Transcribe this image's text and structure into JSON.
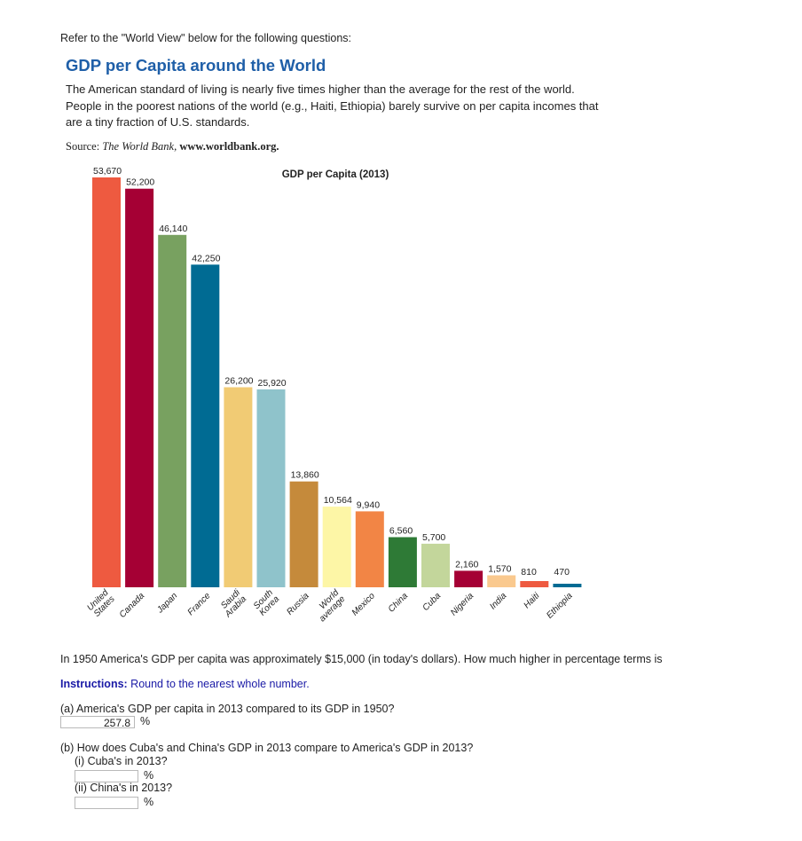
{
  "intro": "Refer to the \"World View\" below for the following questions:",
  "figure": {
    "title": "GDP per Capita around the World",
    "description": "The American standard of living is nearly five times higher than the average for the rest of the world. People in the poorest nations of the world (e.g., Haiti, Ethiopia) barely survive on per capita incomes that are a tiny fraction of U.S. standards.",
    "source_prefix": "Source:",
    "source_name": "The World Bank,",
    "source_url": "www.worldbank.org."
  },
  "chart_data": {
    "type": "bar",
    "title": "GDP per Capita (2013)",
    "categories": [
      "United States",
      "Canada",
      "Japan",
      "France",
      "Saudi Arabia",
      "South Korea",
      "Russia",
      "World average",
      "Mexico",
      "China",
      "Cuba",
      "Nigeria",
      "India",
      "Haiti",
      "Ethiopia"
    ],
    "category_lines": [
      [
        "United",
        "States"
      ],
      [
        "Canada"
      ],
      [
        "Japan"
      ],
      [
        "France"
      ],
      [
        "Saudi",
        "Arabia"
      ],
      [
        "South",
        "Korea"
      ],
      [
        "Russia"
      ],
      [
        "World",
        "average"
      ],
      [
        "Mexico"
      ],
      [
        "China"
      ],
      [
        "Cuba"
      ],
      [
        "Nigeria"
      ],
      [
        "India"
      ],
      [
        "Haiti"
      ],
      [
        "Ethiopia"
      ]
    ],
    "values": [
      53670,
      52200,
      46140,
      42250,
      26200,
      25920,
      13860,
      10564,
      9940,
      6560,
      5700,
      2160,
      1570,
      810,
      470
    ],
    "value_labels": [
      "53,670",
      "52,200",
      "46,140",
      "42,250",
      "26,200",
      "25,920",
      "13,860",
      "10,564",
      "9,940",
      "6,560",
      "5,700",
      "2,160",
      "1,570",
      "810",
      "470"
    ],
    "colors": [
      "#ee5a40",
      "#a50034",
      "#78a160",
      "#006b93",
      "#f1cb74",
      "#8fc3cb",
      "#c58a3b",
      "#fdf6a6",
      "#f28545",
      "#2e7a36",
      "#c3d69b",
      "#a50034",
      "#fac98e",
      "#ee5a40",
      "#006b93"
    ],
    "xlabel": "",
    "ylabel": "",
    "ylim": [
      0,
      53670
    ],
    "grid": false,
    "legend": "none"
  },
  "question": "In 1950 America's GDP per capita was approximately $15,000 (in today's dollars).  How much higher in percentage terms is",
  "instructions": {
    "label": "Instructions:",
    "text": " Round to the nearest whole number."
  },
  "part_a": {
    "text": "(a) America's GDP per capita in 2013 compared to its GDP in 1950?",
    "answer": "257.8",
    "unit": "%"
  },
  "part_b": {
    "text": "(b) How does Cuba's and China's GDP in 2013 compare to America's GDP in 2013?",
    "i_text": "(i) Cuba's in 2013?",
    "i_answer": "",
    "i_unit": "%",
    "ii_text": "(ii) China's in 2013?",
    "ii_answer": "",
    "ii_unit": "%"
  }
}
